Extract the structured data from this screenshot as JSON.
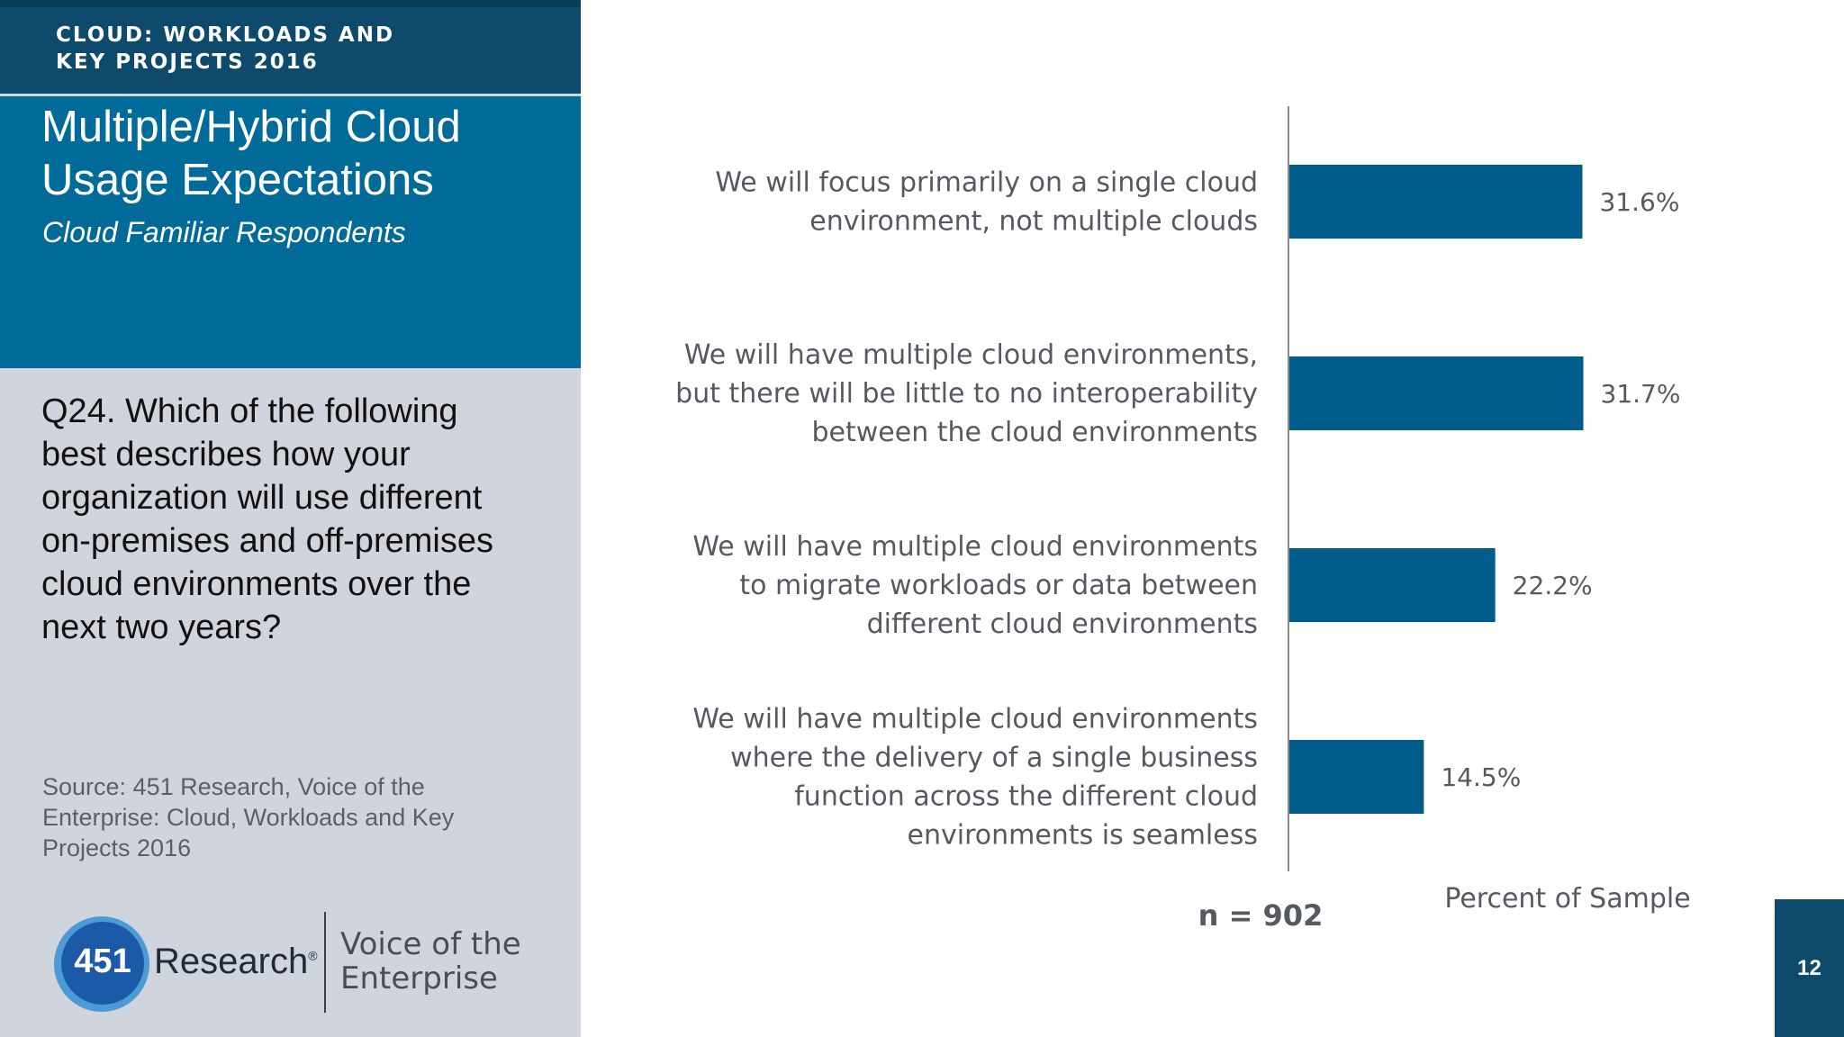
{
  "header": {
    "line1": "CLOUD: WORKLOADS AND",
    "line2": "KEY PROJECTS 2016"
  },
  "title": {
    "line1": "Multiple/Hybrid Cloud",
    "line2": "Usage Expectations",
    "subtitle": "Cloud Familiar Respondents"
  },
  "question": {
    "lines": [
      "Q24. Which of the following",
      "best describes how your",
      "organization will use different",
      "on-premises and off-premises",
      "cloud environments over the",
      "next two years?"
    ]
  },
  "source": {
    "lines": [
      "Source: 451 Research, Voice of the",
      "Enterprise: Cloud, Workloads and Key",
      "Projects 2016"
    ]
  },
  "logo": {
    "number": "451",
    "name": "Research",
    "mark": "®",
    "tagline1": "Voice of the",
    "tagline2": "Enterprise"
  },
  "page_number": "12",
  "colors": {
    "bar": "#005c8a",
    "header": "#0d4a6b",
    "title_band": "#006b99",
    "panel": "#d0d4dc"
  },
  "chart_data": {
    "type": "bar",
    "orientation": "horizontal",
    "categories": [
      [
        "We will focus primarily on a single cloud",
        "environment, not multiple clouds"
      ],
      [
        "We will have multiple cloud environments,",
        "but there will be little to no interoperability",
        "between the cloud environments"
      ],
      [
        "We will have multiple cloud environments",
        "to migrate workloads or data between",
        "different cloud environments"
      ],
      [
        "We will have multiple cloud environments",
        "where the delivery of a single business",
        "function across the different cloud",
        "environments is seamless"
      ]
    ],
    "values": [
      31.6,
      31.7,
      22.2,
      14.5
    ],
    "value_labels": [
      "31.6%",
      "31.7%",
      "22.2%",
      "14.5%"
    ],
    "xlabel": "Percent of Sample",
    "note": "n = 902",
    "xlim": [
      0,
      40
    ],
    "grid": false
  }
}
